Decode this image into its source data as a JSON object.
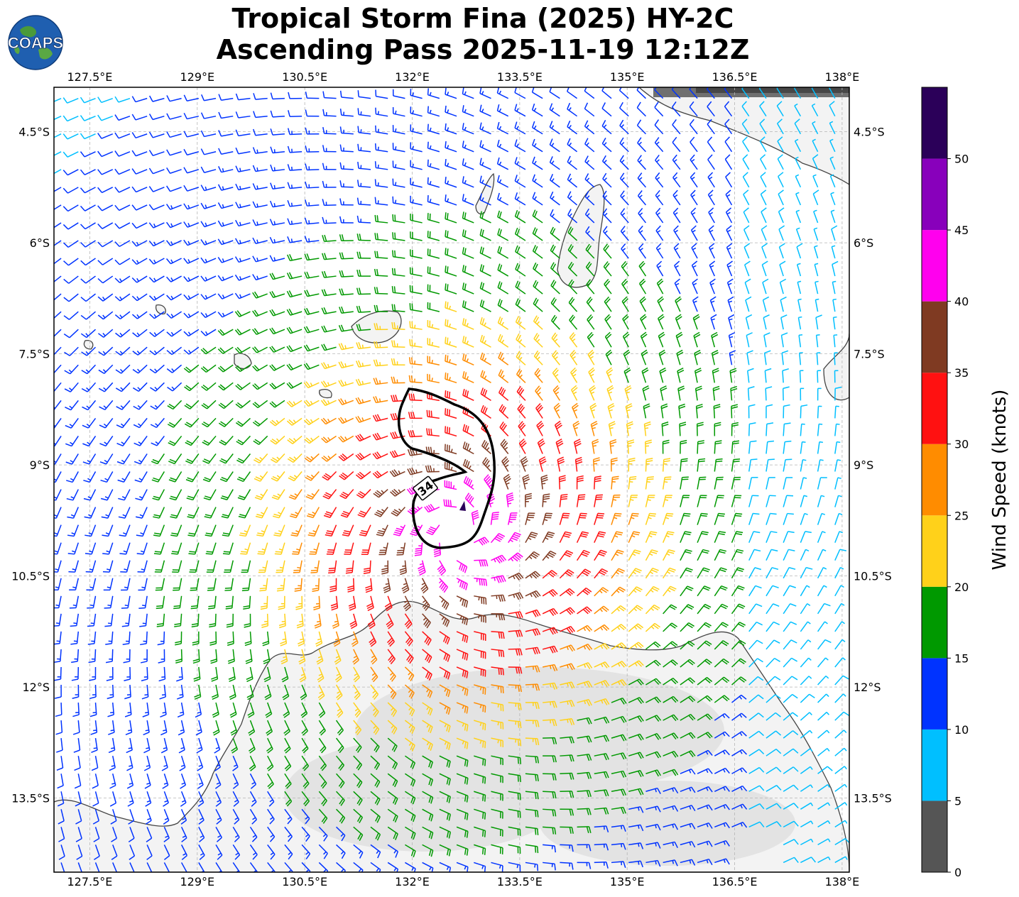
{
  "title": {
    "line1": "Tropical Storm Fina (2025) HY-2C",
    "line2": "Ascending Pass 2025-11-19 12:12Z"
  },
  "logo": {
    "text": "COAPS",
    "icon": "earth-globe-icon"
  },
  "map": {
    "lon_range": [
      127,
      138.1
    ],
    "lat_range": [
      -14.5,
      -3.9
    ],
    "lon_ticks": [
      127.5,
      129,
      130.5,
      132,
      133.5,
      135,
      136.5,
      138
    ],
    "lon_tick_labels": [
      "127.5°E",
      "129°E",
      "130.5°E",
      "132°E",
      "133.5°E",
      "135°E",
      "136.5°E",
      "138°E"
    ],
    "lat_ticks": [
      -4.5,
      -6,
      -7.5,
      -9,
      -10.5,
      -12,
      -13.5
    ],
    "lat_tick_labels": [
      "4.5°S",
      "6°S",
      "7.5°S",
      "9°S",
      "10.5°S",
      "12°S",
      "13.5°S"
    ],
    "grid": true,
    "storm_center": {
      "lon": 132.7,
      "lat": -9.9
    },
    "contour_label": "34",
    "contour_level_knots": 34
  },
  "colorbar": {
    "label": "Wind Speed (knots)",
    "bounds": [
      0,
      5,
      10,
      15,
      20,
      25,
      30,
      35,
      40,
      45,
      50,
      55
    ],
    "tick_labels": [
      "0",
      "5",
      "10",
      "15",
      "20",
      "25",
      "30",
      "35",
      "40",
      "45",
      "50"
    ],
    "colors": [
      "#555555",
      "#00bfff",
      "#0033ff",
      "#009900",
      "#ffd11a",
      "#ff8c00",
      "#ff1111",
      "#7f3a22",
      "#ff00ee",
      "#8800bb",
      "#2b0059"
    ]
  }
}
